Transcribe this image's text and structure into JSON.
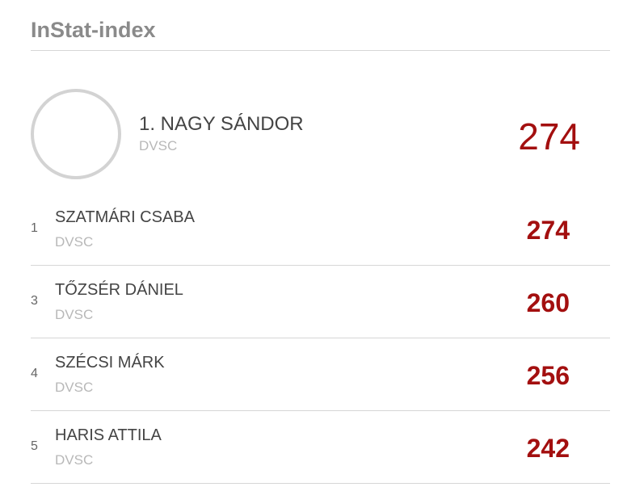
{
  "header": {
    "title": "InStat-index"
  },
  "leader": {
    "name": "1. NAGY SÁNDOR",
    "club": "DVSC",
    "value": 274
  },
  "rows": [
    {
      "rank": 1,
      "name": "SZATMÁRI CSABA",
      "club": "DVSC",
      "value": 274
    },
    {
      "rank": 3,
      "name": "TŐZSÉR DÁNIEL",
      "club": "DVSC",
      "value": 260
    },
    {
      "rank": 4,
      "name": "SZÉCSI MÁRK",
      "club": "DVSC",
      "value": 256
    },
    {
      "rank": 5,
      "name": "HARIS ATTILA",
      "club": "DVSC",
      "value": 242
    }
  ]
}
